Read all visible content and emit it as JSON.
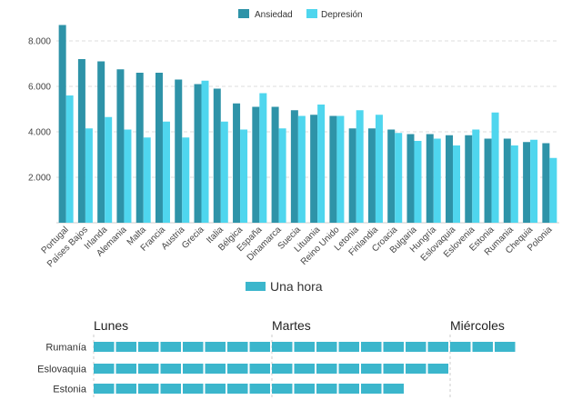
{
  "chart_data": [
    {
      "type": "bar",
      "categories": [
        "Portugal",
        "Países Bajos",
        "Irlanda",
        "Alemania",
        "Malta",
        "Francia",
        "Austria",
        "Grecia",
        "Italia",
        "Bélgica",
        "España",
        "Dinamarca",
        "Suecia",
        "Lituania",
        "Reino Unido",
        "Letonia",
        "Finlandia",
        "Croacia",
        "Bulgaria",
        "Hungría",
        "Eslovaquia",
        "Eslovenia",
        "Estonia",
        "Rumania",
        "Chequia",
        "Polonia"
      ],
      "series": [
        {
          "name": "Ansiedad",
          "color": "#2e93a8",
          "values": [
            8700,
            7200,
            7100,
            6750,
            6600,
            6600,
            6300,
            6100,
            5900,
            5250,
            5100,
            5100,
            4950,
            4750,
            4700,
            4150,
            4150,
            4100,
            3900,
            3900,
            3850,
            3850,
            3700,
            3700,
            3550,
            3500
          ]
        },
        {
          "name": "Depresión",
          "color": "#4fd6ee",
          "values": [
            5600,
            4150,
            4650,
            4100,
            3750,
            4450,
            3750,
            6250,
            4450,
            4100,
            5700,
            4150,
            4700,
            5200,
            4700,
            4950,
            4750,
            3950,
            3600,
            3700,
            3400,
            4100,
            4850,
            3400,
            3650,
            2850
          ]
        }
      ],
      "y_ticks": [
        "2.000",
        "4.000",
        "6.000",
        "8.000"
      ],
      "y_tick_values": [
        2000,
        4000,
        6000,
        8000
      ],
      "ylim": [
        0,
        9000
      ],
      "grid": true,
      "legend_position": "top-center"
    },
    {
      "type": "bar",
      "orientation": "horizontal",
      "legend": "Una hora",
      "unit_color": "#3bb6cc",
      "day_labels": [
        "Lunes",
        "Martes",
        "Miércoles"
      ],
      "hours_per_day": 8,
      "categories": [
        "Rumanía",
        "Eslovaquia",
        "Estonia"
      ],
      "values": [
        19,
        16,
        14
      ]
    }
  ]
}
